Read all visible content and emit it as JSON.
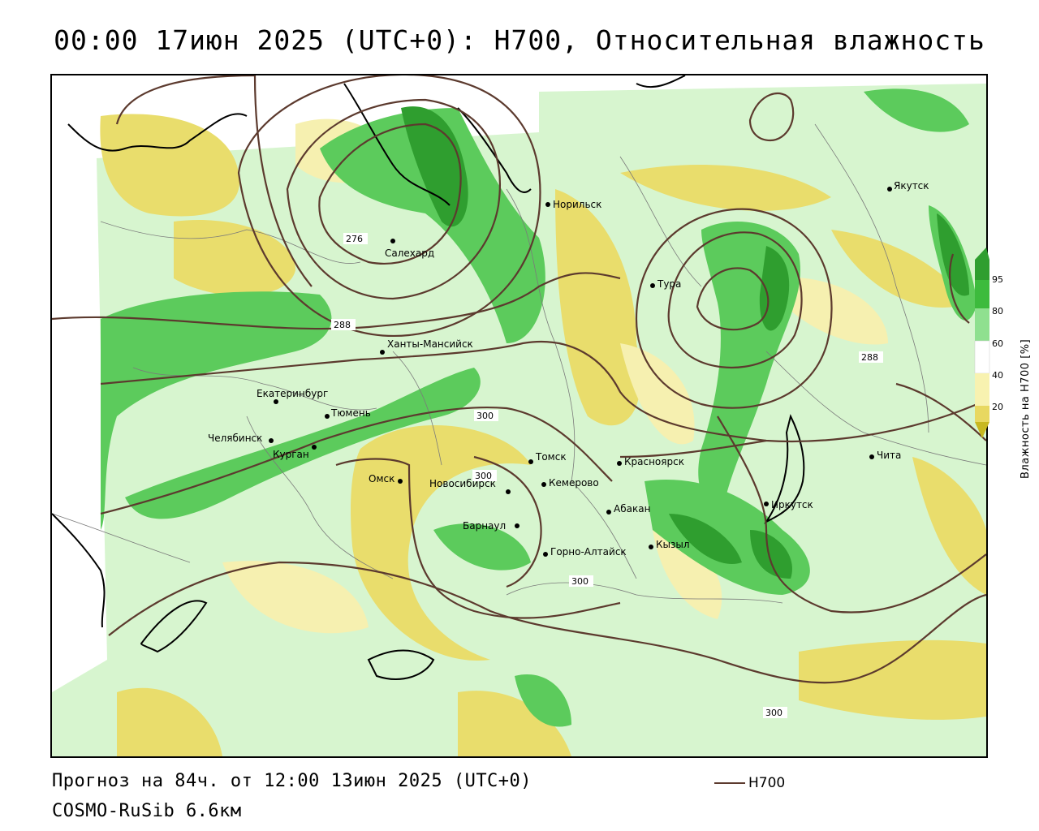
{
  "header": {
    "title": "00:00 17июн 2025 (UTC+0): H700, Относительная влажность"
  },
  "footer": {
    "forecast_label": "Прогноз на 84ч. от 12:00 13июн 2025 (UTC+0)",
    "model_label": "COSMO-RuSib 6.6км"
  },
  "contour_key": {
    "label": "H700",
    "line_color": "#5c3a2e"
  },
  "colorbar": {
    "title": "Влажность на H700 [%]",
    "ticks": [
      "95",
      "80",
      "60",
      "40",
      "20"
    ],
    "colors": [
      "#2f9e2f",
      "#3dbb3d",
      "#8fe08f",
      "#d4f7d0",
      "#ffffff",
      "#f8f2b0",
      "#e8d860",
      "#c8b820"
    ]
  },
  "cities": [
    {
      "name": "Салехард"
    },
    {
      "name": "Норильск"
    },
    {
      "name": "Якутск"
    },
    {
      "name": "Тура"
    },
    {
      "name": "Ханты-Мансийск"
    },
    {
      "name": "Екатеринбург"
    },
    {
      "name": "Тюмень"
    },
    {
      "name": "Челябинск"
    },
    {
      "name": "Курган"
    },
    {
      "name": "Омск"
    },
    {
      "name": "Томск"
    },
    {
      "name": "Красноярск"
    },
    {
      "name": "Новосибирск"
    },
    {
      "name": "Кемерово"
    },
    {
      "name": "Абакан"
    },
    {
      "name": "Барнаул"
    },
    {
      "name": "Кызыл"
    },
    {
      "name": "Горно-Алтайск"
    },
    {
      "name": "Иркутск"
    },
    {
      "name": "Чита"
    }
  ],
  "isolines": [
    "276",
    "288",
    "288",
    "300",
    "300",
    "300",
    "300"
  ]
}
